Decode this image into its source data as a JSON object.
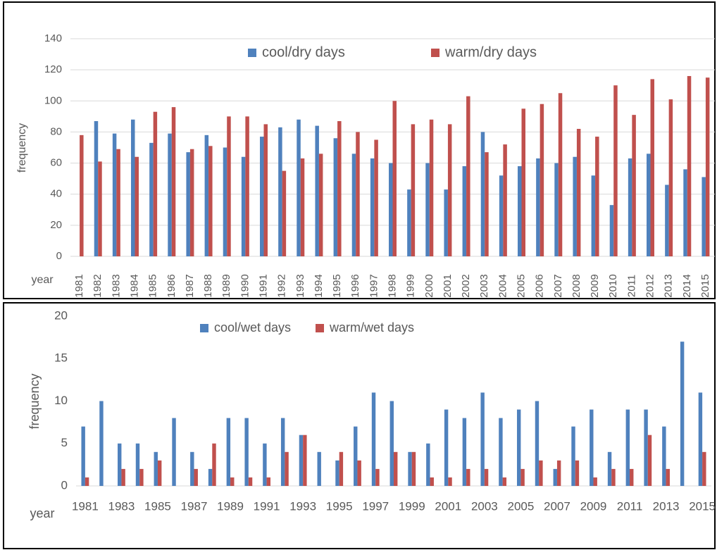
{
  "chart_data": [
    {
      "type": "bar",
      "x_label": "year",
      "y_label": "frequency",
      "categories": [
        "1981",
        "1982",
        "1983",
        "1984",
        "1985",
        "1986",
        "1987",
        "1988",
        "1989",
        "1990",
        "1991",
        "1992",
        "1993",
        "1994",
        "1995",
        "1996",
        "1997",
        "1998",
        "1999",
        "2000",
        "2001",
        "2002",
        "2003",
        "2004",
        "2005",
        "2006",
        "2007",
        "2008",
        "2009",
        "2010",
        "2011",
        "2012",
        "2013",
        "2014",
        "2015"
      ],
      "series": [
        {
          "name": "cool/dry days",
          "color": "#4f81bd",
          "values": [
            0,
            87,
            79,
            88,
            73,
            79,
            67,
            78,
            70,
            64,
            77,
            83,
            88,
            84,
            76,
            66,
            63,
            60,
            43,
            60,
            43,
            58,
            80,
            52,
            58,
            63,
            60,
            64,
            52,
            33,
            63,
            66,
            46,
            56,
            51
          ]
        },
        {
          "name": "warm/dry days",
          "color": "#c0504d",
          "values": [
            78,
            61,
            69,
            64,
            93,
            96,
            69,
            71,
            90,
            90,
            85,
            55,
            63,
            66,
            87,
            80,
            75,
            100,
            85,
            88,
            85,
            103,
            67,
            72,
            95,
            98,
            105,
            82,
            77,
            110,
            91,
            114,
            101,
            116,
            115
          ]
        }
      ],
      "ylim": [
        0,
        140
      ],
      "yticks": [
        0,
        20,
        40,
        60,
        80,
        100,
        120,
        140
      ],
      "grid": true
    },
    {
      "type": "bar",
      "x_label": "year",
      "y_label": "frequency",
      "categories": [
        "1981",
        null,
        "1983",
        null,
        "1985",
        null,
        "1987",
        null,
        "1989",
        null,
        "1991",
        null,
        "1993",
        null,
        "1995",
        null,
        "1997",
        null,
        "1999",
        null,
        "2001",
        null,
        "2003",
        null,
        "2005",
        null,
        "2007",
        null,
        "2009",
        null,
        "2011",
        null,
        "2013",
        null,
        "2015"
      ],
      "series": [
        {
          "name": "cool/wet days",
          "color": "#4f81bd",
          "values": [
            7,
            10,
            5,
            5,
            4,
            8,
            4,
            2,
            8,
            8,
            5,
            8,
            6,
            4,
            3,
            7,
            11,
            10,
            4,
            5,
            9,
            8,
            11,
            8,
            9,
            10,
            2,
            7,
            9,
            4,
            9,
            9,
            7,
            17,
            11
          ]
        },
        {
          "name": "warm/wet days",
          "color": "#c0504d",
          "values": [
            1,
            0,
            2,
            2,
            3,
            0,
            2,
            5,
            1,
            1,
            1,
            4,
            6,
            0,
            4,
            3,
            2,
            4,
            4,
            1,
            1,
            2,
            2,
            1,
            2,
            3,
            3,
            3,
            1,
            2,
            2,
            6,
            2,
            0,
            4
          ]
        }
      ],
      "ylim": [
        0,
        20
      ],
      "yticks": [
        0,
        5,
        10,
        15,
        20
      ],
      "grid": false
    }
  ]
}
